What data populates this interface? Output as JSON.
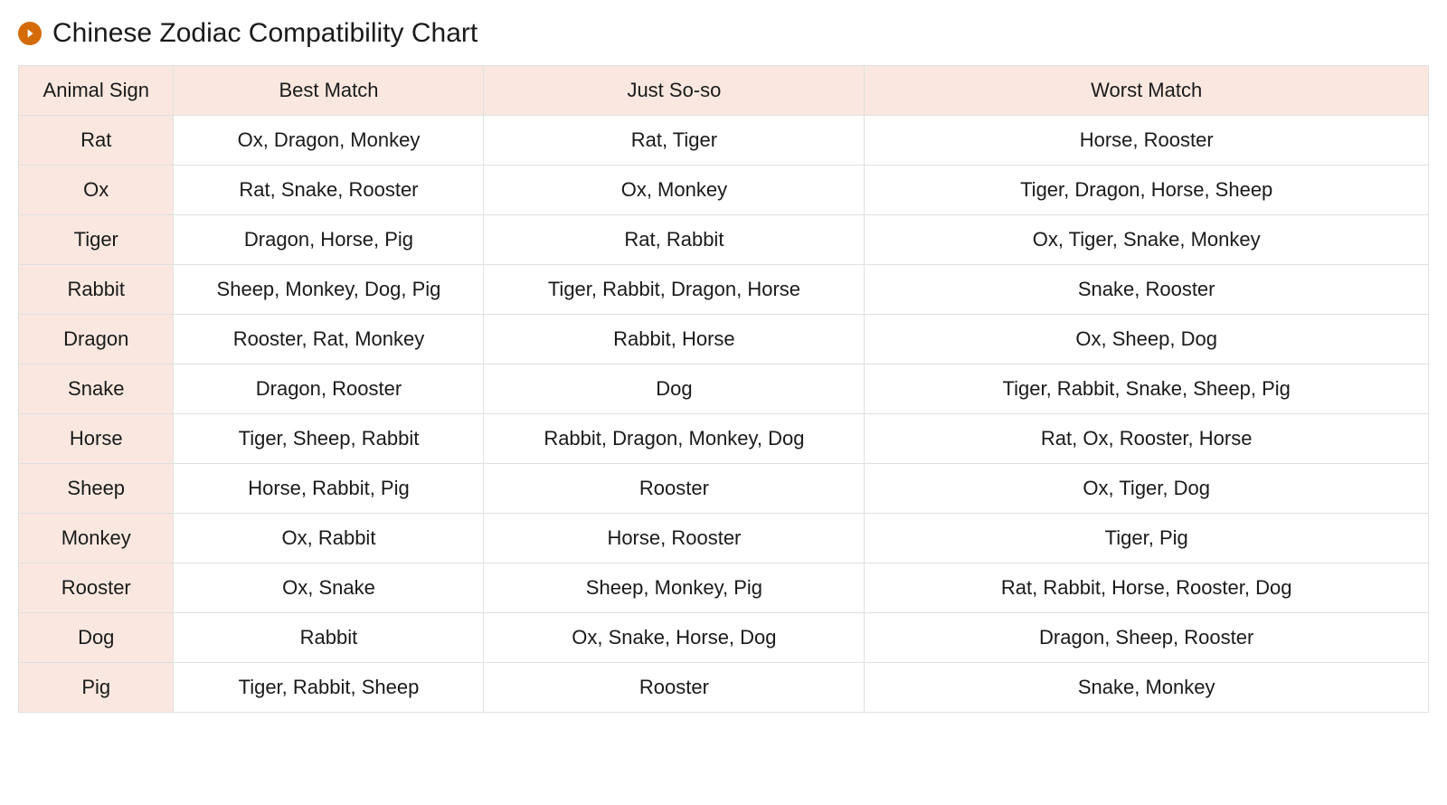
{
  "title": "Chinese Zodiac Compatibility Chart",
  "table": {
    "type": "table",
    "background_color": "#ffffff",
    "header_background_color": "#fae8e0",
    "row_header_background_color": "#fae8e0",
    "border_color": "#e0e0e0",
    "title_icon_color": "#d46b08",
    "text_color": "#1a1a1a",
    "title_fontsize": 30,
    "cell_fontsize": 22,
    "columns": [
      {
        "label": "Animal Sign",
        "width_pct": 11
      },
      {
        "label": "Best Match",
        "width_pct": 22
      },
      {
        "label": "Just So-so",
        "width_pct": 27
      },
      {
        "label": "Worst Match",
        "width_pct": 40
      }
    ],
    "rows": [
      {
        "sign": "Rat",
        "best": "Ox, Dragon, Monkey",
        "soso": "Rat, Tiger",
        "worst": "Horse, Rooster"
      },
      {
        "sign": "Ox",
        "best": "Rat, Snake, Rooster",
        "soso": "Ox, Monkey",
        "worst": "Tiger, Dragon, Horse, Sheep"
      },
      {
        "sign": "Tiger",
        "best": "Dragon, Horse, Pig",
        "soso": "Rat, Rabbit",
        "worst": "Ox, Tiger, Snake, Monkey"
      },
      {
        "sign": "Rabbit",
        "best": "Sheep, Monkey, Dog, Pig",
        "soso": "Tiger, Rabbit, Dragon, Horse",
        "worst": "Snake, Rooster"
      },
      {
        "sign": "Dragon",
        "best": "Rooster, Rat, Monkey",
        "soso": "Rabbit, Horse",
        "worst": "Ox, Sheep, Dog"
      },
      {
        "sign": "Snake",
        "best": "Dragon, Rooster",
        "soso": "Dog",
        "worst": "Tiger, Rabbit, Snake, Sheep, Pig"
      },
      {
        "sign": "Horse",
        "best": "Tiger, Sheep, Rabbit",
        "soso": "Rabbit, Dragon, Monkey, Dog",
        "worst": "Rat, Ox, Rooster, Horse"
      },
      {
        "sign": "Sheep",
        "best": "Horse, Rabbit, Pig",
        "soso": "Rooster",
        "worst": "Ox, Tiger, Dog"
      },
      {
        "sign": "Monkey",
        "best": "Ox, Rabbit",
        "soso": "Horse, Rooster",
        "worst": "Tiger, Pig"
      },
      {
        "sign": "Rooster",
        "best": "Ox, Snake",
        "soso": "Sheep, Monkey, Pig",
        "worst": "Rat, Rabbit, Horse, Rooster, Dog"
      },
      {
        "sign": "Dog",
        "best": "Rabbit",
        "soso": "Ox, Snake, Horse, Dog",
        "worst": "Dragon, Sheep, Rooster"
      },
      {
        "sign": "Pig",
        "best": "Tiger, Rabbit, Sheep",
        "soso": "Rooster",
        "worst": "Snake, Monkey"
      }
    ]
  }
}
